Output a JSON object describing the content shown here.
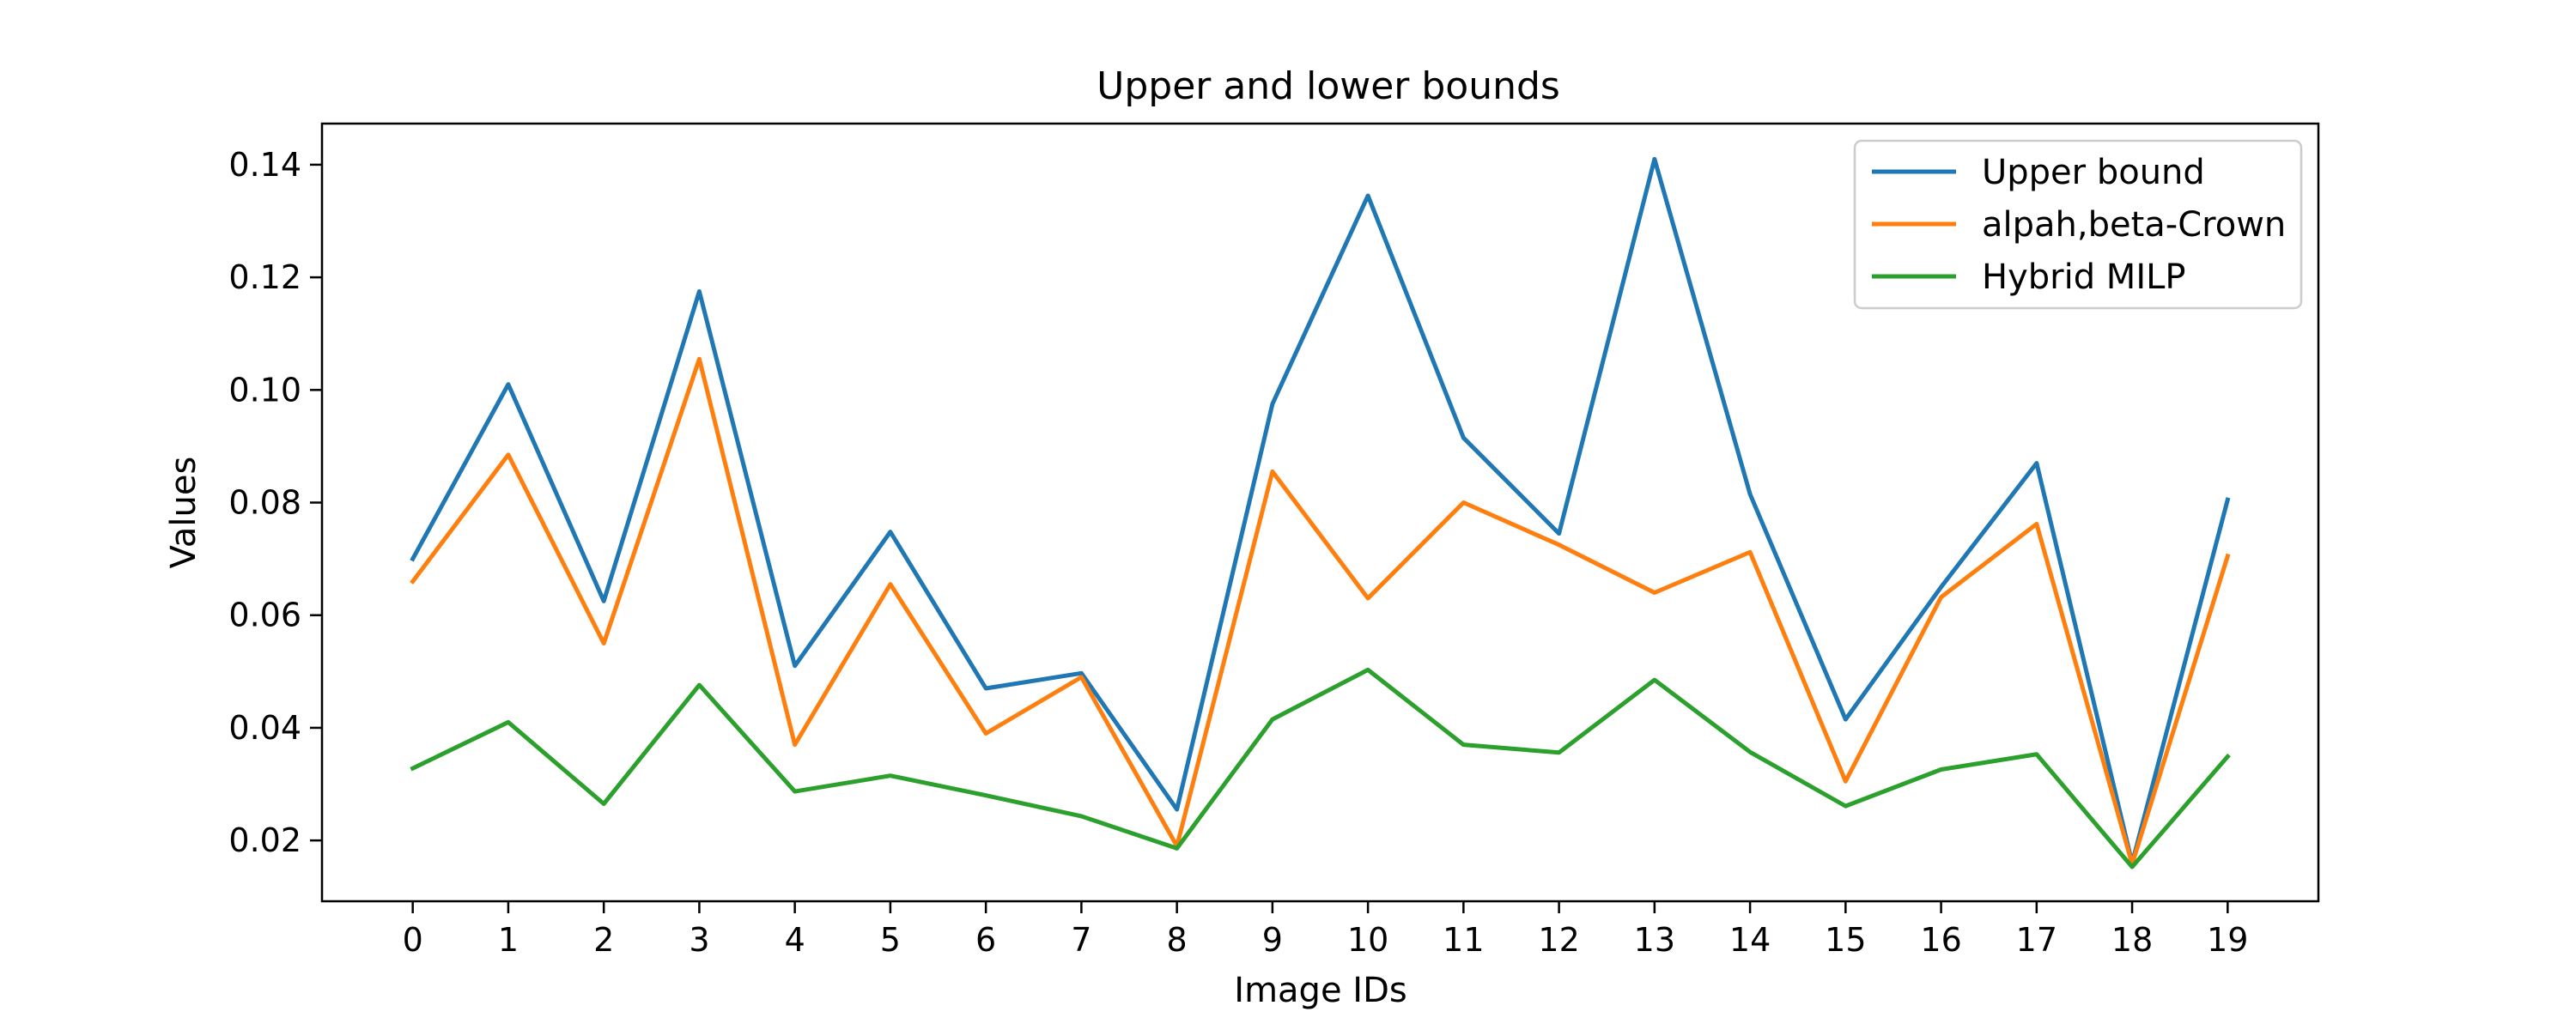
{
  "chart_data": {
    "type": "line",
    "title": "Upper and lower bounds",
    "xlabel": "Image IDs",
    "ylabel": "Values",
    "x": [
      0,
      1,
      2,
      3,
      4,
      5,
      6,
      7,
      8,
      9,
      10,
      11,
      12,
      13,
      14,
      15,
      16,
      17,
      18,
      19
    ],
    "x_ticks": [
      "0",
      "1",
      "2",
      "3",
      "4",
      "5",
      "6",
      "7",
      "8",
      "9",
      "10",
      "11",
      "12",
      "13",
      "14",
      "15",
      "16",
      "17",
      "18",
      "19"
    ],
    "xlim": [
      -0.95,
      19.95
    ],
    "ylim": [
      0.0092,
      0.1473
    ],
    "y_ticks": [
      0.02,
      0.04,
      0.06,
      0.08,
      0.1,
      0.12,
      0.14
    ],
    "y_tick_labels": [
      "0.02",
      "0.04",
      "0.06",
      "0.08",
      "0.10",
      "0.12",
      "0.14"
    ],
    "grid": false,
    "legend_position": "top-right",
    "series": [
      {
        "name": "Upper bound",
        "color": "#1f77b4",
        "values": [
          0.07,
          0.101,
          0.0625,
          0.1175,
          0.051,
          0.0748,
          0.047,
          0.0497,
          0.0255,
          0.0975,
          0.1345,
          0.0915,
          0.0745,
          0.141,
          0.0815,
          0.0415,
          0.065,
          0.087,
          0.016,
          0.0805
        ]
      },
      {
        "name": "alpah,beta-Crown",
        "color": "#ff7f0e",
        "values": [
          0.066,
          0.0885,
          0.055,
          0.1055,
          0.037,
          0.0655,
          0.039,
          0.049,
          0.019,
          0.0855,
          0.063,
          0.08,
          0.0725,
          0.064,
          0.0712,
          0.0305,
          0.0632,
          0.0762,
          0.0158,
          0.0705
        ]
      },
      {
        "name": "Hybrid MILP",
        "color": "#2ca02c",
        "values": [
          0.0328,
          0.041,
          0.0265,
          0.0476,
          0.0287,
          0.0315,
          0.028,
          0.0243,
          0.0186,
          0.0415,
          0.0503,
          0.037,
          0.0356,
          0.0485,
          0.0357,
          0.0261,
          0.0326,
          0.0353,
          0.0153,
          0.0349
        ]
      }
    ]
  }
}
